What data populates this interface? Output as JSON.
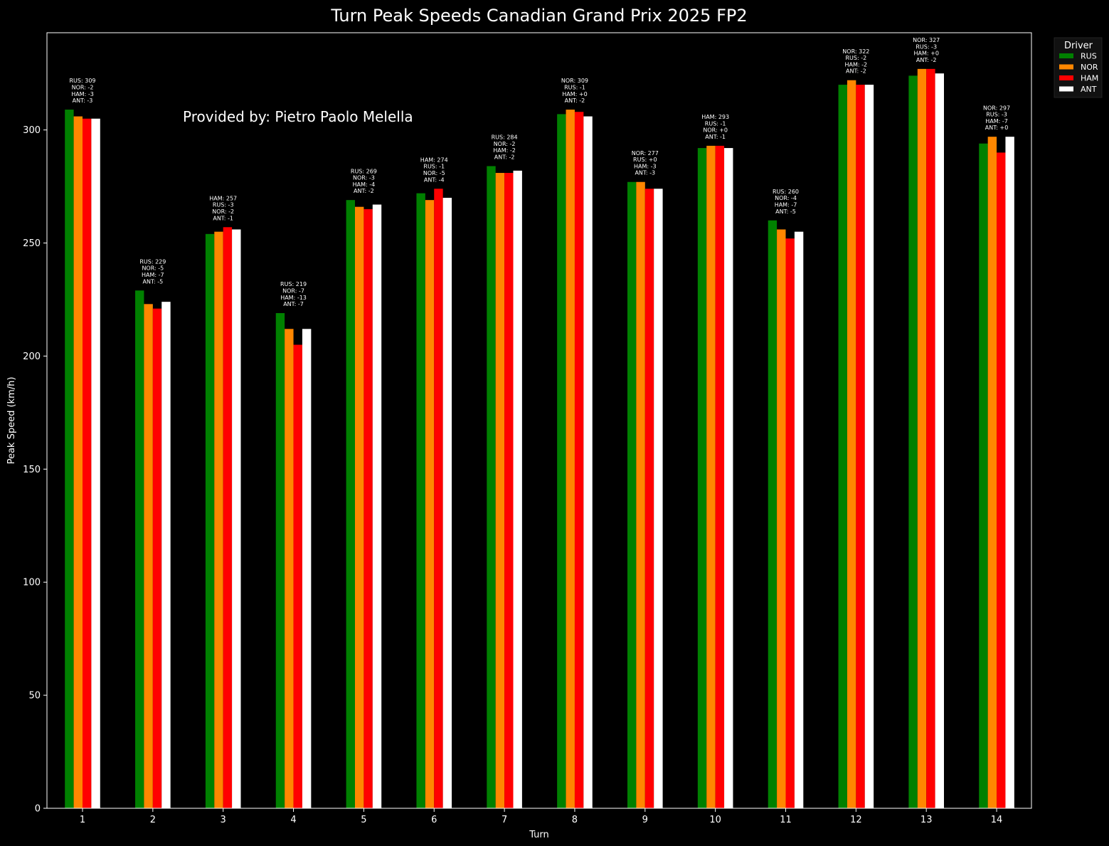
{
  "chart_data": {
    "type": "bar",
    "title": "Turn Peak Speeds Canadian Grand Prix 2025 FP2",
    "credit": "Provided by: Pietro Paolo Melella",
    "xlabel": "Turn",
    "ylabel": "Peak Speed (km/h)",
    "ylim": [
      0,
      343
    ],
    "yticks": [
      0,
      50,
      100,
      150,
      200,
      250,
      300
    ],
    "grid": false,
    "legend": {
      "title": "Driver",
      "placement": "outside-top-right"
    },
    "categories": [
      "1",
      "2",
      "3",
      "4",
      "5",
      "6",
      "7",
      "8",
      "9",
      "10",
      "11",
      "12",
      "13",
      "14"
    ],
    "series": [
      {
        "name": "RUS",
        "color": "#008000",
        "values": [
          309,
          229,
          254,
          219,
          269,
          272,
          284,
          307,
          277,
          292,
          260,
          320,
          324,
          294
        ]
      },
      {
        "name": "NOR",
        "color": "#ff8700",
        "values": [
          306,
          223,
          255,
          212,
          266,
          269,
          281,
          309,
          277,
          293,
          256,
          322,
          327,
          297
        ]
      },
      {
        "name": "HAM",
        "color": "#ff0000",
        "values": [
          305,
          221,
          257,
          205,
          265,
          274,
          281,
          308,
          274,
          293,
          252,
          320,
          327,
          290
        ]
      },
      {
        "name": "ANT",
        "color": "#ffffff",
        "values": [
          305,
          224,
          256,
          212,
          267,
          270,
          282,
          306,
          274,
          292,
          255,
          320,
          325,
          297
        ]
      }
    ],
    "annotations": [
      [
        "RUS: 309",
        "NOR: -2",
        "HAM: -3",
        "ANT: -3"
      ],
      [
        "RUS: 229",
        "NOR: -5",
        "HAM: -7",
        "ANT: -5"
      ],
      [
        "HAM: 257",
        "RUS: -3",
        "NOR: -2",
        "ANT: -1"
      ],
      [
        "RUS: 219",
        "NOR: -7",
        "HAM: -13",
        "ANT: -7"
      ],
      [
        "RUS: 269",
        "NOR: -3",
        "HAM: -4",
        "ANT: -2"
      ],
      [
        "HAM: 274",
        "RUS: -1",
        "NOR: -5",
        "ANT: -4"
      ],
      [
        "RUS: 284",
        "NOR: -2",
        "HAM: -2",
        "ANT: -2"
      ],
      [
        "NOR: 309",
        "RUS: -1",
        "HAM: +0",
        "ANT: -2"
      ],
      [
        "NOR: 277",
        "RUS: +0",
        "HAM: -3",
        "ANT: -3"
      ],
      [
        "HAM: 293",
        "RUS: -1",
        "NOR: +0",
        "ANT: -1"
      ],
      [
        "RUS: 260",
        "NOR: -4",
        "HAM: -7",
        "ANT: -5"
      ],
      [
        "NOR: 322",
        "RUS: -2",
        "HAM: -2",
        "ANT: -2"
      ],
      [
        "NOR: 327",
        "RUS: -3",
        "HAM: +0",
        "ANT: -2"
      ],
      [
        "NOR: 297",
        "RUS: -3",
        "HAM: -7",
        "ANT: +0"
      ]
    ]
  }
}
